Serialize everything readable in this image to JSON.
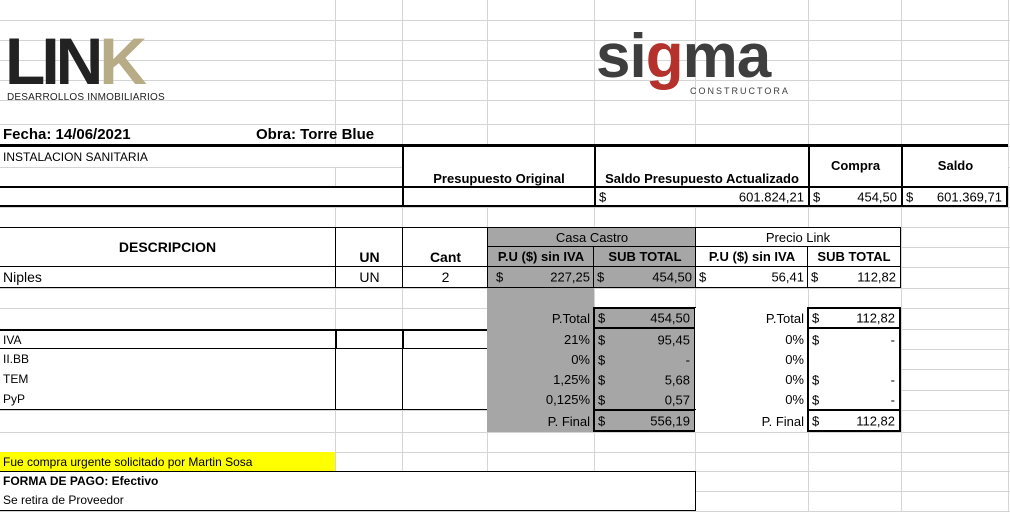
{
  "logos": {
    "link": {
      "main": "LIN",
      "accent": "K",
      "sub": "DESARROLLOS INMOBILIARIOS"
    },
    "sigma": {
      "part1": "si",
      "part2": "g",
      "part3": "ma",
      "sub": "CONSTRUCTORA"
    },
    "colors": {
      "link_dark": "#222222",
      "link_gold": "#b7ac86",
      "sigma_dark": "#3e3e3e",
      "sigma_red": "#b5312b"
    }
  },
  "header": {
    "fecha": "Fecha: 14/06/2021",
    "obra": "Obra: Torre Blue"
  },
  "section": {
    "title": "INSTALACION SANITARIA"
  },
  "summary": {
    "presupuesto_original_label": "Presupuesto Original",
    "saldo_actualizado_label": "Saldo Presupuesto Actualizado",
    "compra_label": "Compra",
    "saldo_label": "Saldo",
    "currency": "$",
    "saldo_actualizado": "601.824,21",
    "compra": "454,50",
    "saldo": "601.369,71"
  },
  "table": {
    "descripcion_label": "DESCRIPCION",
    "un_label": "UN",
    "cant_label": "Cant",
    "casa_castro_label": "Casa Castro",
    "precio_link_label": "Precio Link",
    "pu_label": "P.U ($) sin IVA",
    "subtotal_label": "SUB TOTAL",
    "row": {
      "desc": "Niples",
      "un": "UN",
      "cant": "2",
      "cc_pu": "227,25",
      "cc_sub": "454,50",
      "pl_pu": "56,41",
      "pl_sub": "112,82"
    }
  },
  "totals": {
    "ptotal_label": "P.Total",
    "cc_ptotal": "454,50",
    "pl_ptotal": "112,82",
    "rows": [
      {
        "label": "IVA",
        "cc_pct": "21%",
        "cc_val": "95,45",
        "pl_pct": "0%",
        "pl_cur": "$",
        "pl_val": "-"
      },
      {
        "label": "II.BB",
        "cc_pct": "0%",
        "cc_val": "-",
        "pl_pct": "0%",
        "pl_cur": "",
        "pl_val": ""
      },
      {
        "label": "TEM",
        "cc_pct": "1,25%",
        "cc_val": "5,68",
        "pl_pct": "0%",
        "pl_cur": "$",
        "pl_val": "-"
      },
      {
        "label": "PyP",
        "cc_pct": "0,125%",
        "cc_val": "0,57",
        "pl_pct": "0%",
        "pl_cur": "$",
        "pl_val": "-"
      }
    ],
    "pfinal_label": "P. Final",
    "cc_pfinal": "556,19",
    "pl_pfinal": "112,82"
  },
  "notes": {
    "urgent": "Fue compra urgente solicitado por Martin Sosa",
    "forma_pago": "FORMA DE PAGO: Efectivo",
    "retiro": "Se retira de  Proveedor"
  }
}
